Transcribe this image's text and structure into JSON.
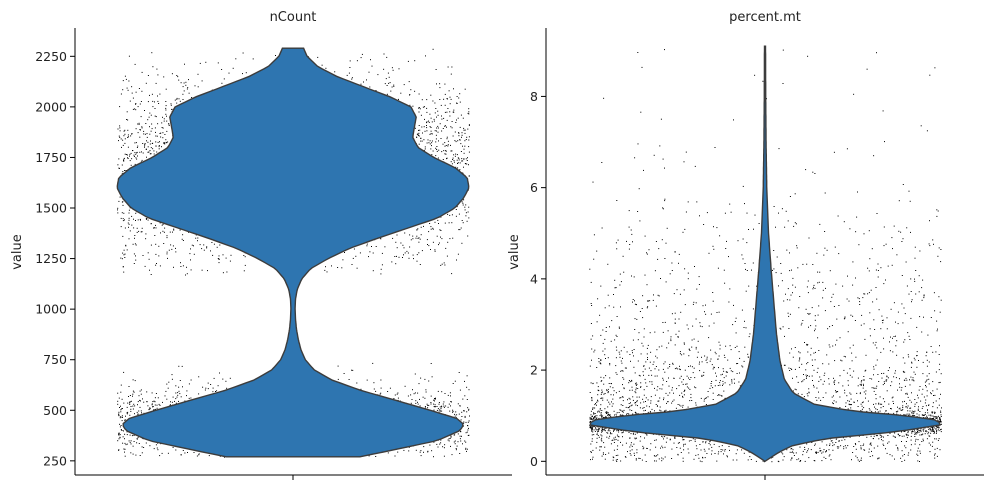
{
  "chart_data": [
    {
      "type": "violin",
      "title": "nCount",
      "xlabel": "",
      "ylabel": "value",
      "ylim": [
        180,
        2390
      ],
      "yticks": [
        250,
        500,
        750,
        1000,
        1250,
        1500,
        1750,
        2000,
        2250
      ],
      "ytick_labels": [
        "250",
        "500",
        "750",
        "1000",
        "1250",
        "1500",
        "1750",
        "2000",
        "2250"
      ],
      "data_range": [
        270,
        2290
      ],
      "violin_fill": "#2e75b0",
      "violin_edge": "#3c3c3c",
      "density_profile": [
        {
          "y": 270,
          "w": 0.38
        },
        {
          "y": 300,
          "w": 0.55
        },
        {
          "y": 350,
          "w": 0.82
        },
        {
          "y": 400,
          "w": 0.95
        },
        {
          "y": 430,
          "w": 0.97
        },
        {
          "y": 460,
          "w": 0.93
        },
        {
          "y": 500,
          "w": 0.78
        },
        {
          "y": 550,
          "w": 0.58
        },
        {
          "y": 600,
          "w": 0.38
        },
        {
          "y": 650,
          "w": 0.22
        },
        {
          "y": 700,
          "w": 0.12
        },
        {
          "y": 750,
          "w": 0.07
        },
        {
          "y": 800,
          "w": 0.045
        },
        {
          "y": 850,
          "w": 0.03
        },
        {
          "y": 900,
          "w": 0.02
        },
        {
          "y": 950,
          "w": 0.014
        },
        {
          "y": 1000,
          "w": 0.012
        },
        {
          "y": 1050,
          "w": 0.014
        },
        {
          "y": 1100,
          "w": 0.025
        },
        {
          "y": 1150,
          "w": 0.05
        },
        {
          "y": 1200,
          "w": 0.1
        },
        {
          "y": 1250,
          "w": 0.2
        },
        {
          "y": 1300,
          "w": 0.32
        },
        {
          "y": 1350,
          "w": 0.48
        },
        {
          "y": 1400,
          "w": 0.65
        },
        {
          "y": 1450,
          "w": 0.82
        },
        {
          "y": 1500,
          "w": 0.92
        },
        {
          "y": 1550,
          "w": 0.97
        },
        {
          "y": 1600,
          "w": 1.0
        },
        {
          "y": 1650,
          "w": 0.99
        },
        {
          "y": 1700,
          "w": 0.92
        },
        {
          "y": 1750,
          "w": 0.8
        },
        {
          "y": 1800,
          "w": 0.71
        },
        {
          "y": 1850,
          "w": 0.68
        },
        {
          "y": 1900,
          "w": 0.69
        },
        {
          "y": 1950,
          "w": 0.7
        },
        {
          "y": 2000,
          "w": 0.67
        },
        {
          "y": 2050,
          "w": 0.55
        },
        {
          "y": 2100,
          "w": 0.4
        },
        {
          "y": 2150,
          "w": 0.25
        },
        {
          "y": 2200,
          "w": 0.14
        },
        {
          "y": 2250,
          "w": 0.08
        },
        {
          "y": 2290,
          "w": 0.06
        }
      ],
      "jitter_points": {
        "color": "#000000",
        "approximate_count": 6000,
        "clusters": [
          {
            "center": 440,
            "spread": 90,
            "min": 270,
            "max": 740,
            "share": 0.38
          },
          {
            "center": 1680,
            "spread": 230,
            "min": 1170,
            "max": 2290,
            "share": 0.62
          }
        ]
      }
    },
    {
      "type": "violin",
      "title": "percent.mt",
      "xlabel": "",
      "ylabel": "value",
      "ylim": [
        -0.3,
        9.5
      ],
      "yticks": [
        0,
        2,
        4,
        6,
        8
      ],
      "ytick_labels": [
        "0",
        "2",
        "4",
        "6",
        "8"
      ],
      "data_range": [
        0,
        9.1
      ],
      "violin_fill": "#2e75b0",
      "violin_edge": "#3c3c3c",
      "density_profile": [
        {
          "y": 0.0,
          "w": 0.0
        },
        {
          "y": 0.1,
          "w": 0.04
        },
        {
          "y": 0.2,
          "w": 0.08
        },
        {
          "y": 0.35,
          "w": 0.16
        },
        {
          "y": 0.5,
          "w": 0.35
        },
        {
          "y": 0.65,
          "w": 0.75
        },
        {
          "y": 0.8,
          "w": 1.0
        },
        {
          "y": 0.9,
          "w": 0.98
        },
        {
          "y": 1.0,
          "w": 0.8
        },
        {
          "y": 1.1,
          "w": 0.5
        },
        {
          "y": 1.25,
          "w": 0.28
        },
        {
          "y": 1.5,
          "w": 0.16
        },
        {
          "y": 1.8,
          "w": 0.11
        },
        {
          "y": 2.2,
          "w": 0.085
        },
        {
          "y": 2.8,
          "w": 0.065
        },
        {
          "y": 3.5,
          "w": 0.05
        },
        {
          "y": 4.2,
          "w": 0.035
        },
        {
          "y": 5.0,
          "w": 0.02
        },
        {
          "y": 6.0,
          "w": 0.01
        },
        {
          "y": 7.0,
          "w": 0.006
        },
        {
          "y": 8.0,
          "w": 0.004
        },
        {
          "y": 9.1,
          "w": 0.003
        }
      ],
      "jitter_points": {
        "color": "#000000",
        "approximate_count": 6000,
        "clusters": [
          {
            "center": 0.85,
            "spread": 0.12,
            "min": 0,
            "max": 1.3,
            "share": 0.55
          },
          {
            "center": 0.9,
            "spread": 0.7,
            "min": 0,
            "max": 2.5,
            "share": 0.27
          },
          {
            "center": 2.5,
            "spread": 1.8,
            "min": 0,
            "max": 9.1,
            "share": 0.18
          }
        ]
      }
    }
  ]
}
